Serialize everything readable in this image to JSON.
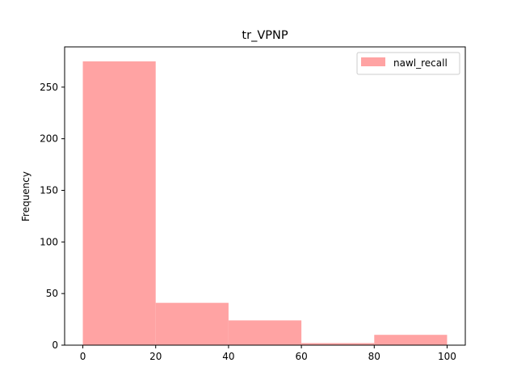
{
  "chart_data": {
    "type": "bar",
    "title": "tr_VPNP",
    "xlabel": "",
    "ylabel": "Frequency",
    "bins": [
      [
        0,
        20
      ],
      [
        20,
        40
      ],
      [
        40,
        60
      ],
      [
        60,
        80
      ],
      [
        80,
        100
      ]
    ],
    "series": [
      {
        "name": "nawl_recall",
        "values": [
          275,
          41,
          24,
          2,
          10
        ]
      }
    ],
    "xlim": [
      -5,
      105
    ],
    "ylim": [
      0,
      289
    ],
    "xticks": [
      0,
      20,
      40,
      60,
      80,
      100
    ],
    "yticks": [
      0,
      50,
      100,
      150,
      200,
      250
    ],
    "grid": false,
    "legend_position": "top-right",
    "color": "#ffa3a3"
  }
}
